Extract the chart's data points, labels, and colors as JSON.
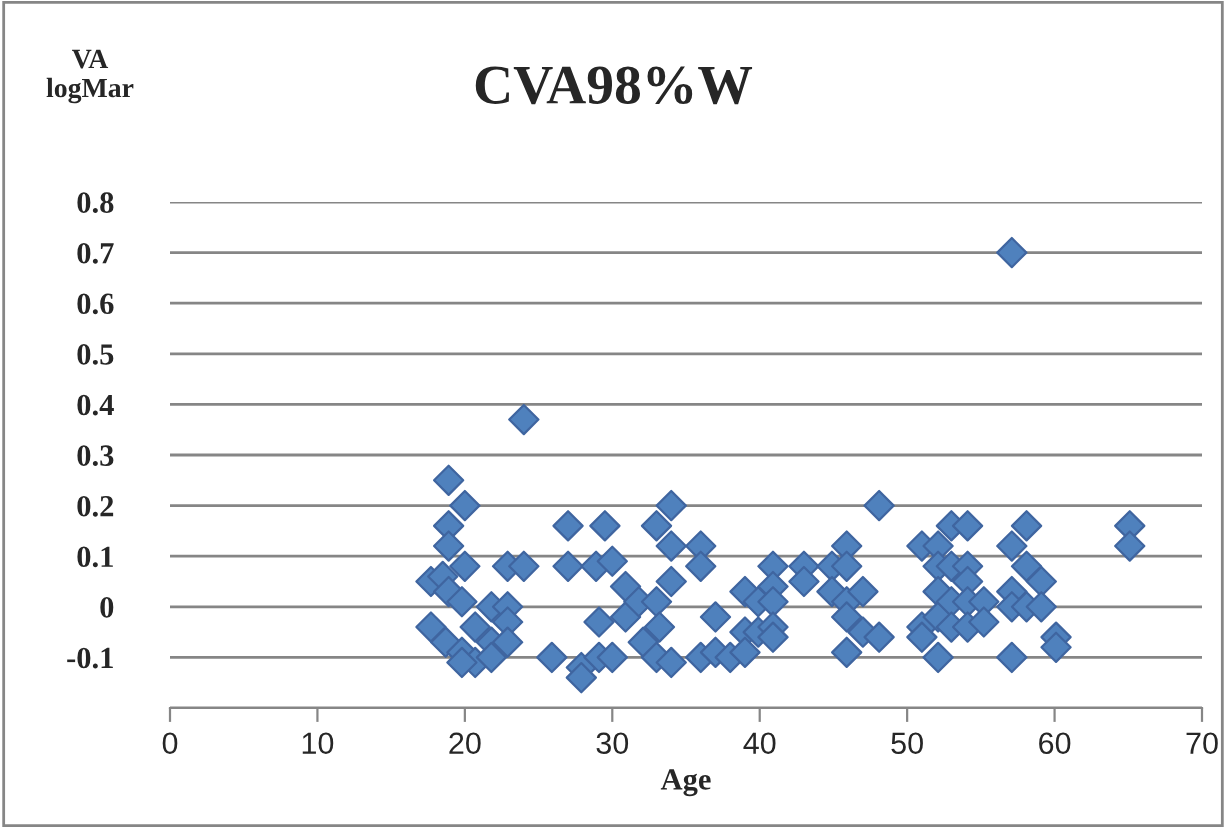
{
  "chart_data": {
    "type": "scatter",
    "title": "CVA98%W",
    "xlabel": "Age",
    "ylabel": "VA\nlogMar",
    "series": [
      {
        "color": "#4f81bd",
        "x": [
          24.0,
          18.9,
          20.0,
          18.9,
          18.9,
          27.0,
          17.7,
          18.5,
          20.0,
          22.9,
          24.0,
          27.0,
          28.9,
          18.9,
          19.8,
          17.7,
          18.7,
          20.7,
          21.8,
          22.9,
          22.9,
          21.8,
          22.9,
          19.8,
          20.7,
          19.8,
          21.8,
          25.9,
          27.9,
          27.9,
          29.1,
          29.1,
          29.5,
          30.0,
          30.9,
          30.9,
          31.8,
          30.0,
          32.1,
          33.0,
          33.0,
          33.2,
          33.0,
          34.0,
          34.0,
          34.0,
          34.0,
          36.0,
          36.0,
          36.0,
          37.0,
          37.0,
          38.0,
          39.0,
          39.0,
          39.0,
          39.9,
          39.9,
          40.9,
          40.9,
          40.9,
          40.9,
          40.9,
          43.0,
          43.0,
          44.9,
          44.9,
          45.9,
          45.9,
          45.9,
          45.9,
          45.9,
          47.0,
          47.0,
          48.1,
          48.1,
          51.0,
          51.0,
          51.0,
          52.1,
          52.1,
          52.1,
          52.1,
          52.1,
          53.0,
          53.0,
          53.0,
          53.0,
          54.1,
          54.1,
          54.1,
          54.1,
          54.1,
          55.2,
          55.2,
          57.1,
          57.1,
          57.1,
          57.1,
          57.1,
          58.1,
          58.1,
          58.1,
          59.1,
          59.1,
          60.1,
          60.1,
          65.1,
          65.1
        ],
        "values": [
          0.37,
          0.25,
          0.2,
          0.16,
          0.12,
          0.16,
          0.05,
          0.06,
          0.08,
          0.08,
          0.08,
          0.08,
          0.08,
          0.03,
          0.01,
          -0.04,
          -0.07,
          -0.04,
          0.0,
          0.0,
          -0.03,
          -0.07,
          -0.07,
          -0.09,
          -0.11,
          -0.11,
          -0.1,
          -0.1,
          -0.12,
          -0.14,
          -0.1,
          -0.03,
          0.16,
          0.09,
          0.04,
          -0.02,
          0.01,
          -0.1,
          -0.07,
          0.16,
          0.01,
          -0.04,
          -0.1,
          0.2,
          0.12,
          0.05,
          -0.11,
          0.12,
          0.08,
          -0.1,
          -0.02,
          -0.09,
          -0.1,
          0.03,
          -0.05,
          -0.09,
          0.01,
          -0.05,
          0.08,
          0.04,
          0.01,
          -0.04,
          -0.06,
          0.08,
          0.05,
          0.08,
          0.03,
          0.12,
          0.08,
          0.01,
          -0.02,
          -0.09,
          0.03,
          -0.05,
          0.2,
          -0.06,
          0.12,
          -0.04,
          -0.06,
          0.12,
          0.08,
          0.03,
          -0.02,
          -0.1,
          0.16,
          0.08,
          0.01,
          -0.04,
          0.16,
          0.08,
          0.05,
          0.01,
          -0.04,
          0.01,
          -0.03,
          0.7,
          0.12,
          0.03,
          0.0,
          -0.1,
          0.16,
          0.08,
          0.0,
          0.05,
          0.0,
          -0.06,
          -0.08,
          0.16,
          0.12
        ]
      }
    ],
    "xlim": [
      0,
      70
    ],
    "xticks": [
      0,
      10,
      20,
      30,
      40,
      50,
      60,
      70
    ],
    "ylim": [
      -0.2,
      0.8
    ],
    "yticks": [
      {
        "value": -0.2,
        "label": null
      },
      {
        "value": -0.1,
        "label": "-0.1"
      },
      {
        "value": 0,
        "label": "0"
      },
      0.1,
      0.2,
      0.3,
      0.4,
      0.5,
      0.6,
      0.7,
      0.8
    ],
    "grid": "y",
    "marker": "diamond",
    "legend": false
  }
}
